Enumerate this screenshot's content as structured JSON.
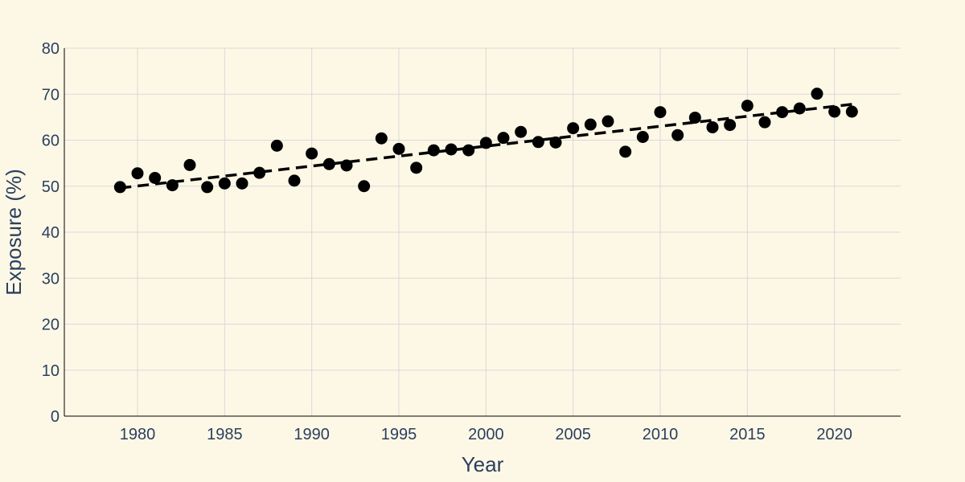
{
  "chart_data": {
    "type": "scatter",
    "xlabel": "Year",
    "ylabel": "Exposure (%)",
    "xlim": [
      1975.8,
      2023.8
    ],
    "ylim": [
      0,
      80
    ],
    "xticks": [
      1980,
      1985,
      1990,
      1995,
      2000,
      2005,
      2010,
      2015,
      2020
    ],
    "yticks": [
      0,
      10,
      20,
      30,
      40,
      50,
      60,
      70,
      80
    ],
    "grid": true,
    "colors": {
      "background": "#fdf8e6",
      "marker": "#000000",
      "trend": "#000000",
      "grid": "#d8d8d8",
      "text": "#2a3f5f"
    },
    "series": [
      {
        "marker": "circle",
        "x": [
          1979,
          1980,
          1981,
          1982,
          1983,
          1984,
          1985,
          1986,
          1987,
          1988,
          1989,
          1990,
          1991,
          1992,
          1993,
          1994,
          1995,
          1996,
          1997,
          1998,
          1999,
          2000,
          2001,
          2002,
          2003,
          2004,
          2005,
          2006,
          2007,
          2008,
          2009,
          2010,
          2011,
          2012,
          2013,
          2014,
          2015,
          2016,
          2017,
          2018,
          2019,
          2020,
          2021
        ],
        "y": [
          49.8,
          52.8,
          51.8,
          50.2,
          54.6,
          49.8,
          50.6,
          50.6,
          52.9,
          58.8,
          51.2,
          57.1,
          54.8,
          54.5,
          50.0,
          60.4,
          58.1,
          54.0,
          57.8,
          58.0,
          57.8,
          59.4,
          60.5,
          61.8,
          59.6,
          59.5,
          62.6,
          63.4,
          64.1,
          57.5,
          60.7,
          66.1,
          61.1,
          64.9,
          62.8,
          63.3,
          67.5,
          63.9,
          66.1,
          66.9,
          70.1,
          66.2,
          66.2
        ]
      }
    ],
    "trendline": {
      "style": "dashed",
      "x": [
        1979,
        2021
      ],
      "y": [
        49.6,
        67.8
      ]
    }
  }
}
